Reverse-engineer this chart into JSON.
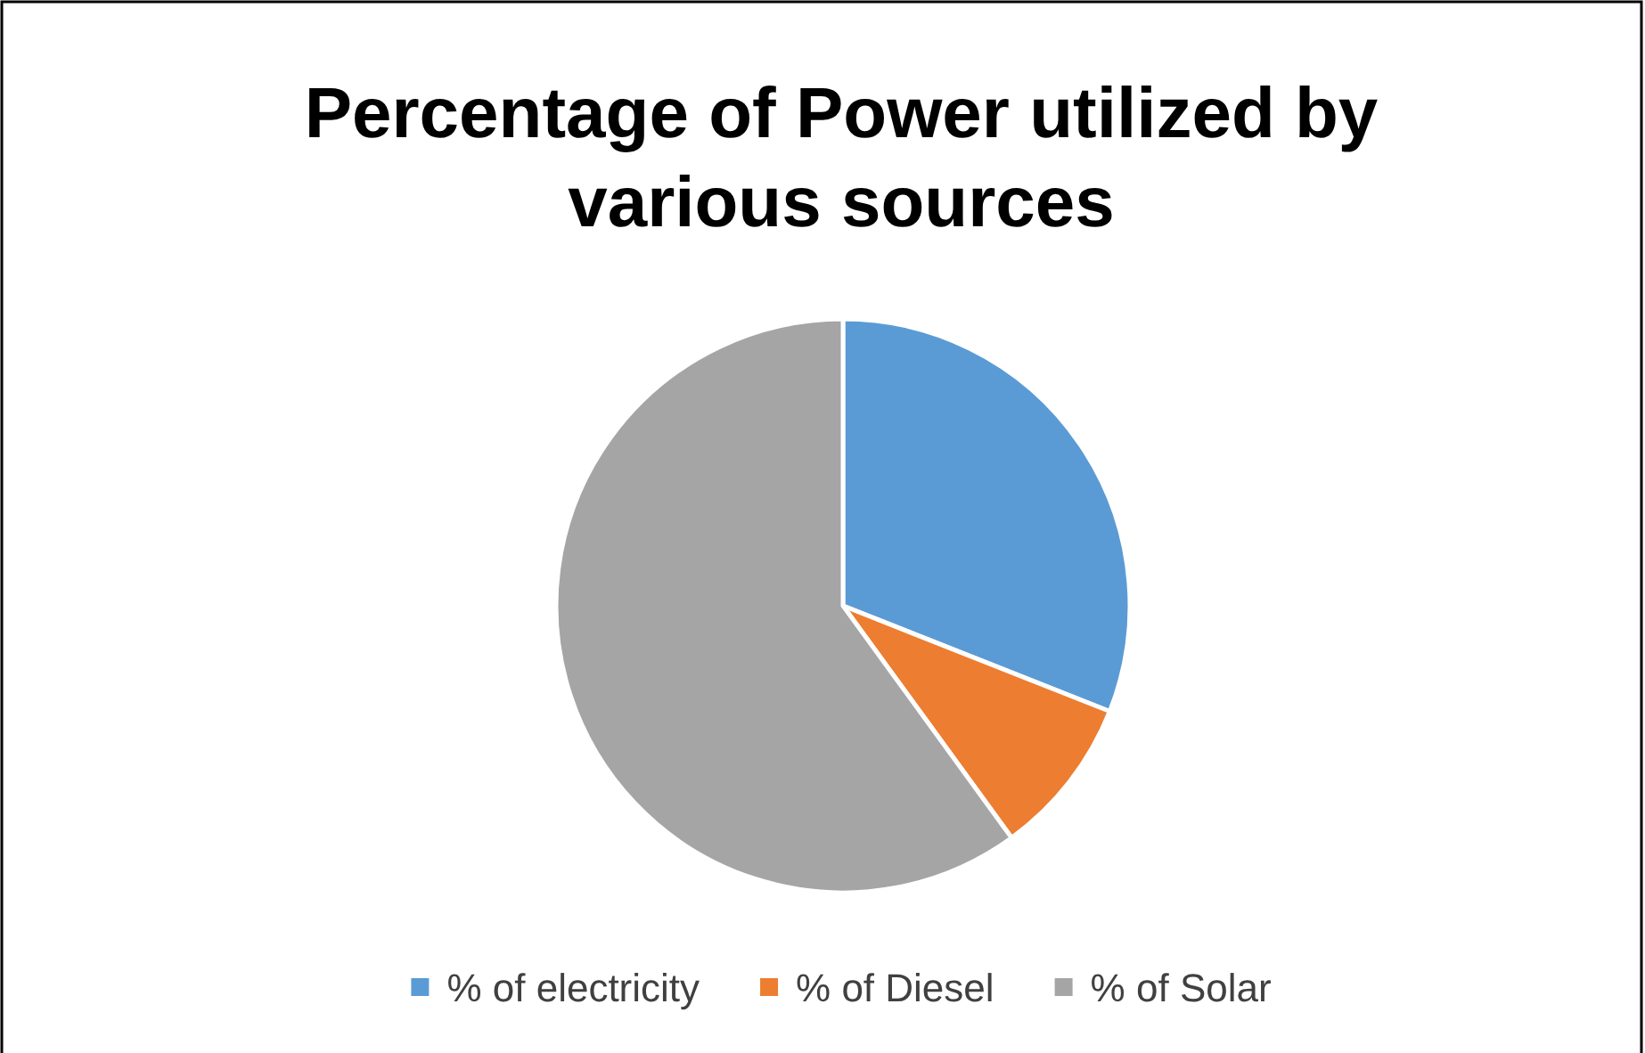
{
  "chart_data": {
    "type": "pie",
    "title": "Percentage of Power utilized by various sources",
    "categories": [
      "% of electricity",
      "% of Diesel",
      "% of Solar"
    ],
    "values": [
      31,
      9,
      60
    ],
    "colors": [
      "#5b9bd5",
      "#ed7d31",
      "#a5a5a5"
    ],
    "legend": "bottom"
  }
}
